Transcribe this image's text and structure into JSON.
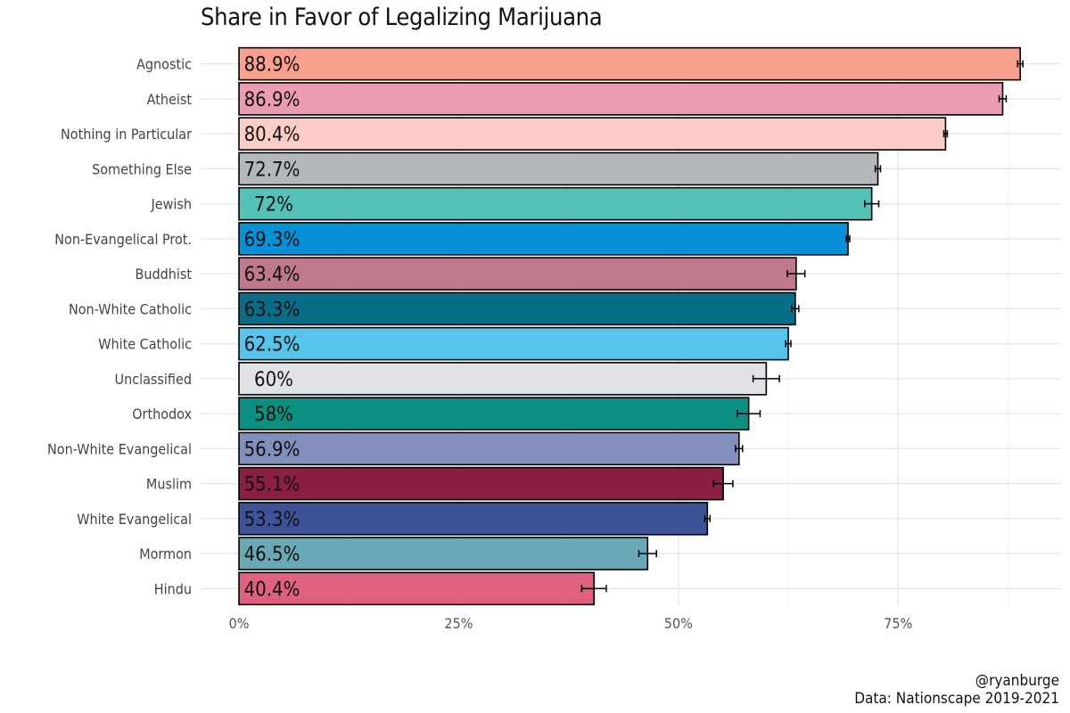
{
  "chart_data": {
    "type": "bar",
    "orientation": "horizontal",
    "title": "Share in Favor of Legalizing Marijuana",
    "xlabel": "",
    "ylabel": "",
    "xlim": [
      0,
      0.95
    ],
    "x_ticks": [
      0,
      0.25,
      0.5,
      0.75
    ],
    "x_tick_labels": [
      "0%",
      "25%",
      "50%",
      "75%"
    ],
    "grid": true,
    "legend": "none",
    "categories": [
      "Agnostic",
      "Atheist",
      "Nothing in Particular",
      "Something Else",
      "Jewish",
      "Non-Evangelical Prot.",
      "Buddhist",
      "Non-White Catholic",
      "White Catholic",
      "Unclassified",
      "Orthodox",
      "Non-White Evangelical",
      "Muslim",
      "White Evangelical",
      "Mormon",
      "Hindu"
    ],
    "values": [
      0.889,
      0.869,
      0.804,
      0.727,
      0.72,
      0.693,
      0.634,
      0.633,
      0.625,
      0.6,
      0.58,
      0.569,
      0.551,
      0.533,
      0.465,
      0.404
    ],
    "value_labels": [
      "88.9%",
      "86.9%",
      "80.4%",
      "72.7%",
      "72%",
      "69.3%",
      "63.4%",
      "63.3%",
      "62.5%",
      "60%",
      "58%",
      "56.9%",
      "55.1%",
      "53.3%",
      "46.5%",
      "40.4%"
    ],
    "error_low": [
      0.886,
      0.865,
      0.802,
      0.724,
      0.712,
      0.691,
      0.624,
      0.629,
      0.622,
      0.585,
      0.567,
      0.565,
      0.54,
      0.53,
      0.455,
      0.39
    ],
    "error_high": [
      0.892,
      0.873,
      0.806,
      0.73,
      0.728,
      0.695,
      0.644,
      0.637,
      0.628,
      0.615,
      0.593,
      0.573,
      0.562,
      0.536,
      0.475,
      0.418
    ],
    "colors": [
      "#F9A08E",
      "#EC9CB2",
      "#FCCDC5",
      "#B4B8BD",
      "#56C1B7",
      "#0590D8",
      "#BF788C",
      "#086E87",
      "#56C4EB",
      "#E0E2E5",
      "#0A8F80",
      "#828FBC",
      "#8A1F41",
      "#3D5297",
      "#69A9B6",
      "#E0617D"
    ]
  },
  "footer": {
    "credit": "@ryanburge",
    "source": "Data: Nationscape 2019-2021"
  }
}
